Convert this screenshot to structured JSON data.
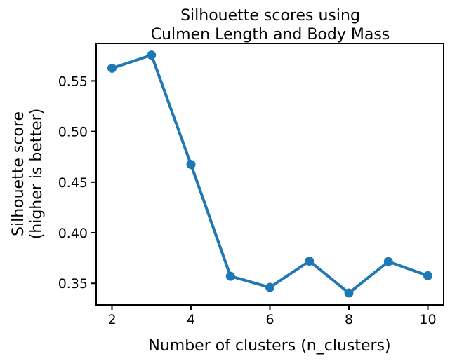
{
  "chart_data": {
    "type": "line",
    "title": [
      "Silhouette scores using",
      "Culmen Length and Body Mass"
    ],
    "xlabel": "Number of clusters (n_clusters)",
    "ylabel": [
      "Silhouette score",
      "(higher is better)"
    ],
    "x": [
      2,
      3,
      4,
      5,
      6,
      7,
      8,
      9,
      10
    ],
    "series": [
      {
        "values": [
          0.5625,
          0.5755,
          0.4675,
          0.357,
          0.346,
          0.372,
          0.3405,
          0.3715,
          0.3575
        ],
        "color": "#1f77b4"
      }
    ],
    "xticks": [
      2,
      4,
      6,
      8,
      10
    ],
    "xtick_labels": [
      "2",
      "4",
      "6",
      "8",
      "10"
    ],
    "yticks": [
      0.35,
      0.4,
      0.45,
      0.5,
      0.55
    ],
    "ytick_labels": [
      "0.35",
      "0.40",
      "0.45",
      "0.50",
      "0.55"
    ],
    "xlim": [
      1.6,
      10.4
    ],
    "ylim": [
      0.3287,
      0.587
    ],
    "grid": false,
    "legend": false
  }
}
